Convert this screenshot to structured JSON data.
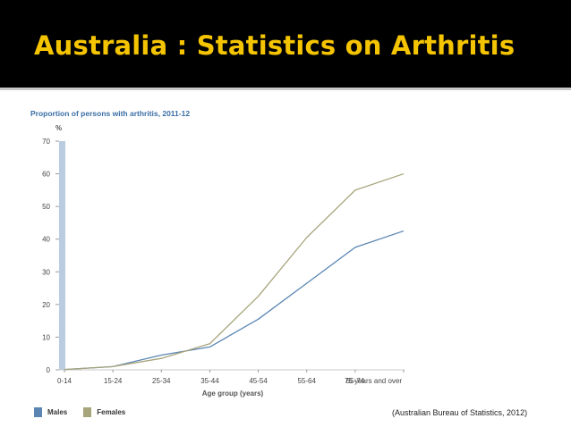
{
  "slide": {
    "title": "Australia : Statistics on Arthritis",
    "source": "(Australian Bureau of Statistics, 2012)"
  },
  "chart_data": {
    "type": "line",
    "title": "Proportion of persons with arthritis, 2011-12",
    "ylabel": "%",
    "xlabel": "Age group (years)",
    "categories": [
      "0-14",
      "15-24",
      "25-34",
      "35-44",
      "45-54",
      "55-64",
      "65-74",
      "75 years and over"
    ],
    "ylim": [
      0,
      70
    ],
    "yticks": [
      0,
      10,
      20,
      30,
      40,
      50,
      60,
      70
    ],
    "grid": false,
    "legend_position": "bottom-left",
    "series": [
      {
        "name": "Males",
        "values": [
          0.1,
          1.0,
          4.5,
          7.0,
          15.5,
          26.5,
          37.5,
          42.5
        ],
        "color": "#5b86b4"
      },
      {
        "name": "Females",
        "values": [
          0.1,
          1.0,
          3.5,
          8.0,
          22.5,
          40.5,
          55.0,
          60.0
        ],
        "color": "#a8a47c"
      }
    ],
    "axis_color": "#b9cce0"
  }
}
